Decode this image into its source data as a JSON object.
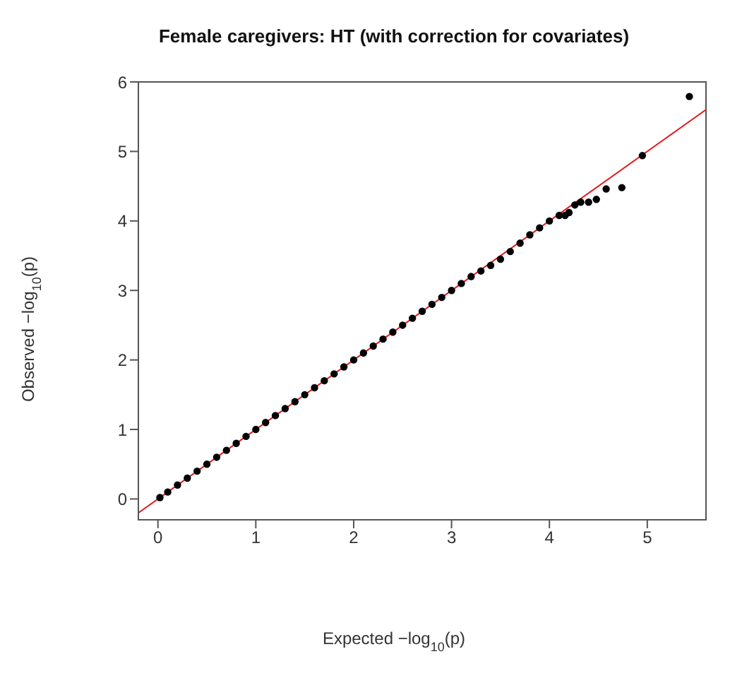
{
  "chart_data": {
    "type": "scatter",
    "title": "Female caregivers: HT (with correction for covariates)",
    "xlabel": "Expected −log$_{10}$(p)",
    "ylabel": "Observed −log$_{10}$(p)",
    "xlim": [
      -0.2,
      5.6
    ],
    "ylim": [
      -0.3,
      6
    ],
    "xticks": [
      0,
      1,
      2,
      3,
      4,
      5
    ],
    "yticks": [
      0,
      1,
      2,
      3,
      4,
      5,
      6
    ],
    "marker": "circle",
    "series": [
      {
        "type": "scatter",
        "color": "#000000",
        "x": [
          0.02,
          0.1,
          0.2,
          0.3,
          0.4,
          0.5,
          0.6,
          0.7,
          0.8,
          0.9,
          1.0,
          1.1,
          1.2,
          1.3,
          1.4,
          1.5,
          1.6,
          1.7,
          1.8,
          1.9,
          2.0,
          2.1,
          2.2,
          2.3,
          2.4,
          2.5,
          2.6,
          2.7,
          2.8,
          2.9,
          3.0,
          3.1,
          3.2,
          3.3,
          3.4,
          3.5,
          3.6,
          3.7,
          3.8,
          3.9,
          4.0,
          4.1,
          4.16,
          4.2,
          4.26,
          4.32,
          4.4,
          4.48,
          4.58,
          4.74,
          4.95,
          5.43
        ],
        "values": [
          0.02,
          0.1,
          0.2,
          0.3,
          0.4,
          0.5,
          0.6,
          0.7,
          0.8,
          0.9,
          1.0,
          1.1,
          1.2,
          1.3,
          1.4,
          1.5,
          1.6,
          1.7,
          1.8,
          1.9,
          2.0,
          2.1,
          2.2,
          2.3,
          2.4,
          2.5,
          2.6,
          2.7,
          2.8,
          2.9,
          3.0,
          3.1,
          3.2,
          3.28,
          3.36,
          3.45,
          3.56,
          3.68,
          3.8,
          3.9,
          4.0,
          4.08,
          4.08,
          4.12,
          4.23,
          4.27,
          4.27,
          4.31,
          4.46,
          4.48,
          4.94,
          5.79
        ]
      },
      {
        "type": "line",
        "marker": "none",
        "color": "#e41a1c",
        "x": [
          -0.2,
          5.6
        ],
        "values": [
          -0.2,
          5.6
        ]
      }
    ]
  }
}
